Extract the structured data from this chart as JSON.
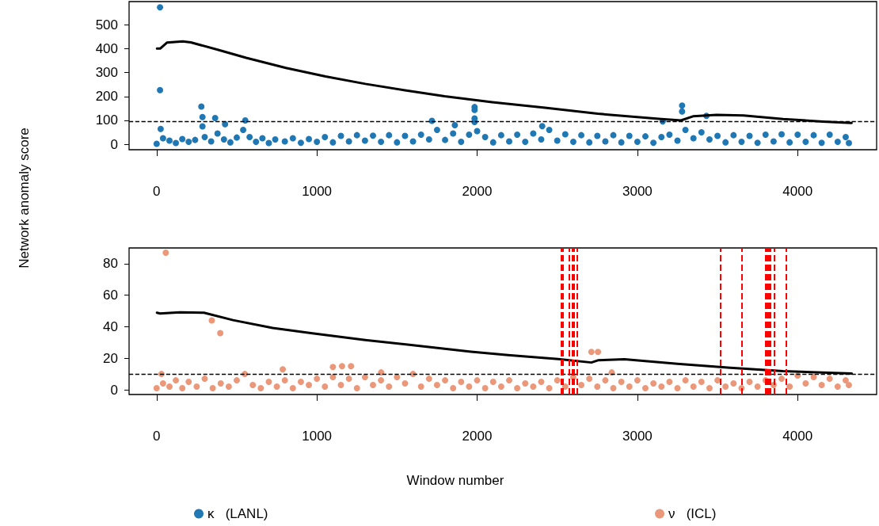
{
  "chart_data": [
    {
      "type": "scatter",
      "ylabel": "Network anomaly score",
      "xlim": [
        -172,
        4493
      ],
      "xticks": [
        0,
        1000,
        2000,
        3000,
        4000
      ],
      "ylim": [
        -23,
        598
      ],
      "yticks": [
        0,
        100,
        200,
        300,
        400,
        500
      ],
      "grid": false,
      "legend": "bottom left",
      "marker": "circle",
      "ref_lines": [
        {
          "axis": "y",
          "value": 97,
          "color": "#000000",
          "line_style": "dashed"
        }
      ],
      "series": [
        {
          "type": "scatter",
          "name": "κ   (LANL)",
          "color": "#1f77b4",
          "x": [
            0,
            21,
            21,
            25,
            40,
            80,
            120,
            160,
            200,
            240,
            279,
            286,
            286,
            300,
            340,
            365,
            380,
            420,
            427,
            460,
            500,
            540,
            553,
            580,
            620,
            660,
            700,
            740,
            800,
            850,
            900,
            950,
            1000,
            1050,
            1100,
            1150,
            1200,
            1250,
            1300,
            1350,
            1400,
            1450,
            1500,
            1550,
            1600,
            1650,
            1700,
            1718,
            1750,
            1800,
            1850,
            1861,
            1900,
            1950,
            1984,
            1984,
            1984,
            1984,
            2000,
            2050,
            2100,
            2150,
            2200,
            2250,
            2300,
            2350,
            2400,
            2406,
            2450,
            2500,
            2550,
            2600,
            2650,
            2700,
            2750,
            2800,
            2850,
            2900,
            2950,
            3000,
            3050,
            3100,
            3150,
            3158,
            3200,
            3250,
            3279,
            3279,
            3300,
            3350,
            3400,
            3431,
            3450,
            3500,
            3550,
            3600,
            3650,
            3700,
            3750,
            3800,
            3850,
            3900,
            3950,
            4000,
            4050,
            4100,
            4150,
            4200,
            4250,
            4300,
            4320
          ],
          "values": [
            2,
            574,
            227,
            64,
            25,
            15,
            5,
            22,
            10,
            18,
            158,
            114,
            75,
            30,
            12,
            110,
            45,
            20,
            84,
            8,
            28,
            60,
            100,
            30,
            10,
            25,
            5,
            20,
            12,
            25,
            6,
            22,
            10,
            30,
            8,
            35,
            12,
            38,
            15,
            36,
            10,
            38,
            8,
            35,
            12,
            40,
            20,
            98,
            60,
            18,
            45,
            80,
            10,
            40,
            156,
            144,
            108,
            93,
            55,
            30,
            8,
            38,
            12,
            40,
            10,
            45,
            20,
            76,
            60,
            15,
            42,
            10,
            38,
            8,
            35,
            12,
            38,
            8,
            35,
            10,
            33,
            6,
            30,
            96,
            40,
            15,
            162,
            137,
            60,
            25,
            50,
            119,
            20,
            35,
            8,
            38,
            10,
            35,
            6,
            40,
            12,
            42,
            8,
            40,
            10,
            38,
            6,
            40,
            10,
            30,
            5
          ]
        },
        {
          "type": "line",
          "color": "#000000",
          "marker": "none",
          "line_style": "solid",
          "x": [
            2,
            22,
            64,
            163,
            213,
            394,
            559,
            807,
            1054,
            1302,
            1550,
            1797,
            2094,
            2424,
            2752,
            3149,
            3272,
            3347,
            3495,
            3662,
            3909,
            4157,
            4337
          ],
          "values": [
            401,
            401,
            426,
            431,
            427,
            394,
            362,
            320,
            284,
            253,
            226,
            201,
            176,
            153,
            128,
            106,
            100,
            117,
            123,
            121,
            106,
            95,
            89
          ]
        }
      ]
    },
    {
      "type": "scatter",
      "xlabel": "Window number",
      "xlim": [
        -172,
        4493
      ],
      "xticks": [
        0,
        1000,
        2000,
        3000,
        4000
      ],
      "ylim": [
        -3,
        90
      ],
      "yticks": [
        0,
        20,
        40,
        60,
        80
      ],
      "grid": false,
      "legend": "bottom right",
      "marker": "circle",
      "ref_lines": [
        {
          "axis": "y",
          "value": 10,
          "color": "#000000",
          "line_style": "dashed"
        },
        {
          "axis": "x",
          "value": 2523,
          "color": "#ff0000",
          "line_style": "dashed"
        },
        {
          "axis": "x",
          "value": 2536,
          "color": "#ff0000",
          "line_style": "dashed"
        },
        {
          "axis": "x",
          "value": 2573,
          "color": "#ff0000",
          "line_style": "dashed"
        },
        {
          "axis": "x",
          "value": 2594,
          "color": "#ff0000",
          "line_style": "dashed"
        },
        {
          "axis": "x",
          "value": 2604,
          "color": "#ff0000",
          "line_style": "dashed"
        },
        {
          "axis": "x",
          "value": 2622,
          "color": "#ff0000",
          "line_style": "dashed"
        },
        {
          "axis": "x",
          "value": 3516,
          "color": "#ff0000",
          "line_style": "dashed"
        },
        {
          "axis": "x",
          "value": 3653,
          "color": "#ff0000",
          "line_style": "dashed"
        },
        {
          "axis": "x",
          "value": 3798,
          "color": "#ff0000",
          "line_style": "dashed"
        },
        {
          "axis": "x",
          "value": 3807,
          "color": "#ff0000",
          "line_style": "dashed"
        },
        {
          "axis": "x",
          "value": 3815,
          "color": "#ff0000",
          "line_style": "dashed"
        },
        {
          "axis": "x",
          "value": 3823,
          "color": "#ff0000",
          "line_style": "dashed"
        },
        {
          "axis": "x",
          "value": 3831,
          "color": "#ff0000",
          "line_style": "dashed"
        },
        {
          "axis": "x",
          "value": 3853,
          "color": "#ff0000",
          "line_style": "dashed"
        },
        {
          "axis": "x",
          "value": 3926,
          "color": "#ff0000",
          "line_style": "dashed"
        }
      ],
      "series": [
        {
          "type": "scatter",
          "name": "ν   (ICL)",
          "color": "#eb987a",
          "x": [
            0,
            30,
            40,
            57,
            80,
            120,
            160,
            200,
            250,
            300,
            344,
            350,
            397,
            400,
            450,
            500,
            550,
            600,
            650,
            700,
            750,
            787,
            800,
            850,
            900,
            950,
            1000,
            1050,
            1100,
            1100,
            1150,
            1157,
            1200,
            1213,
            1250,
            1300,
            1350,
            1400,
            1401,
            1450,
            1500,
            1550,
            1600,
            1650,
            1700,
            1750,
            1800,
            1850,
            1900,
            1950,
            2000,
            2050,
            2100,
            2150,
            2200,
            2250,
            2300,
            2350,
            2400,
            2450,
            2500,
            2550,
            2600,
            2650,
            2700,
            2713,
            2750,
            2754,
            2800,
            2840,
            2850,
            2900,
            2950,
            3000,
            3050,
            3100,
            3150,
            3200,
            3250,
            3300,
            3350,
            3400,
            3450,
            3500,
            3550,
            3600,
            3650,
            3700,
            3750,
            3800,
            3850,
            3900,
            3950,
            4000,
            4050,
            4100,
            4150,
            4200,
            4250,
            4300,
            4320
          ],
          "values": [
            1,
            10,
            4,
            87,
            2,
            6,
            1,
            5,
            2,
            7,
            44,
            1,
            36,
            4,
            2,
            6,
            10,
            3,
            1,
            5,
            2,
            13,
            6,
            1,
            5,
            3,
            7,
            2,
            14.5,
            8,
            3,
            15,
            7,
            15,
            1,
            8,
            3,
            6,
            11,
            2,
            8,
            4,
            10,
            2,
            7,
            3,
            6,
            1,
            5,
            2,
            6,
            1,
            5,
            2,
            6,
            1,
            4,
            2,
            5,
            1,
            6,
            2,
            8,
            3,
            7,
            24,
            2,
            24,
            6,
            11,
            1,
            5,
            2,
            6,
            1,
            4,
            2,
            5,
            1,
            6,
            2,
            5,
            1,
            6,
            2,
            4,
            1,
            5,
            2,
            6,
            3,
            7,
            2,
            9,
            4,
            8,
            3,
            7,
            2,
            6,
            3
          ]
        },
        {
          "type": "line",
          "color": "#000000",
          "marker": "none",
          "line_style": "solid",
          "x": [
            2,
            21,
            146,
            295,
            477,
            724,
            972,
            1302,
            1632,
            1962,
            2193,
            2506,
            2713,
            2754,
            2919,
            3249,
            3579,
            3909,
            4338
          ],
          "values": [
            48.9,
            48.4,
            49.2,
            48.9,
            44.2,
            39.2,
            35.8,
            31.6,
            27.9,
            24.2,
            22,
            19.5,
            17.3,
            18.7,
            19.4,
            16.5,
            14,
            11.8,
            10.3
          ]
        }
      ]
    }
  ]
}
